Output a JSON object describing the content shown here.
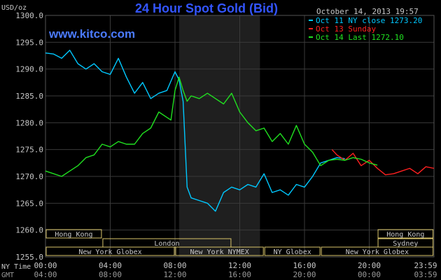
{
  "header": {
    "unit_label": "USD/oz",
    "title": "24 Hour Spot Gold (Bid)",
    "timestamp": "October 14, 2013 19:57",
    "watermark": "www.kitco.com"
  },
  "colors": {
    "background": "#000000",
    "title": "#3355ff",
    "watermark": "#4b7bff",
    "grid": "#3a3a3a",
    "text": "#c8c8c8",
    "shade": "#1f1f1f",
    "session_border": "#d8c46a"
  },
  "legend": {
    "position": "top-right",
    "items": [
      {
        "label": "Oct 11 NY close 1273.20",
        "color": "#00c8ff"
      },
      {
        "label": "Oct 13 Sunday",
        "color": "#ff2020"
      },
      {
        "label": "Oct 14 Last 1272.10",
        "color": "#20e020"
      }
    ]
  },
  "sessions": {
    "row1": [
      {
        "label": "Hong Kong",
        "from": "00:00",
        "to": "03:30"
      },
      {
        "label": "Hong Kong",
        "from": "20:30",
        "to": "23:59"
      }
    ],
    "row2": [
      {
        "label": "London",
        "from": "03:30",
        "to": "11:30"
      },
      {
        "label": "Sydney",
        "from": "20:30",
        "to": "23:59"
      }
    ],
    "row3": [
      {
        "label": "New York Globex",
        "from": "00:00",
        "to": "08:00"
      },
      {
        "label": "New York NYMEX",
        "from": "08:00",
        "to": "13:30"
      },
      {
        "label": "NY Globex",
        "from": "13:30",
        "to": "17:00"
      },
      {
        "label": "New York Globex",
        "from": "17:00",
        "to": "23:59"
      }
    ]
  },
  "time_rows": {
    "ny_label": "NY Time",
    "gmt_label": "GMT",
    "ny_ticks": [
      "00:00",
      "04:00",
      "08:00",
      "12:00",
      "16:00",
      "20:00",
      "23:59"
    ],
    "gmt_ticks": [
      "04:00",
      "08:00",
      "12:00",
      "16:00",
      "20:00",
      "00:00",
      "03:59"
    ]
  },
  "chart_data": {
    "type": "line",
    "title": "24 Hour Spot Gold (Bid)",
    "ylabel": "USD/oz",
    "xlabel": "",
    "xlim": [
      0,
      24
    ],
    "ylim": [
      1255,
      1300
    ],
    "yticks": [
      "1300.0",
      "1295.0",
      "1290.0",
      "1285.0",
      "1280.0",
      "1275.0",
      "1270.0",
      "1265.0",
      "1260.0",
      "1255.0"
    ],
    "grid": true,
    "shaded_region": [
      8.25,
      13.25
    ],
    "series": [
      {
        "name": "Oct 11 NY close 1273.20",
        "color": "#00c8ff",
        "x": [
          0,
          0.5,
          1,
          1.5,
          2,
          2.5,
          3,
          3.5,
          4,
          4.5,
          5,
          5.5,
          6,
          6.5,
          7,
          7.5,
          8,
          8.25,
          8.5,
          8.75,
          9,
          9.5,
          10,
          10.5,
          11,
          11.5,
          12,
          12.5,
          13,
          13.5,
          14,
          14.5,
          15,
          15.5,
          16,
          16.5,
          17,
          17.5,
          18,
          18.5
        ],
        "y": [
          1293,
          1292.8,
          1292,
          1293.5,
          1291,
          1290,
          1291,
          1289.5,
          1289,
          1292,
          1288.5,
          1285.5,
          1287.5,
          1284.5,
          1285.5,
          1286,
          1289.5,
          1288,
          1284,
          1268,
          1266,
          1265.5,
          1265,
          1263.5,
          1267,
          1268,
          1267.5,
          1268.5,
          1268,
          1270.5,
          1267,
          1267.5,
          1266.5,
          1268.5,
          1268,
          1270,
          1272.5,
          1273,
          1273.5,
          1273.3
        ]
      },
      {
        "name": "Oct 13 Sunday",
        "color": "#ff2020",
        "x": [
          17.7,
          18,
          18.5,
          19,
          19.5,
          20,
          20.5,
          21,
          21.5,
          22,
          22.5,
          23,
          23.5,
          24
        ],
        "y": [
          1275,
          1274,
          1273,
          1274.3,
          1272,
          1273,
          1271.5,
          1270.3,
          1270.5,
          1271,
          1271.5,
          1270.5,
          1271.8,
          1271.5
        ]
      },
      {
        "name": "Oct 14 Last 1272.10",
        "color": "#20e020",
        "x": [
          0,
          0.5,
          1,
          1.5,
          2,
          2.5,
          3,
          3.5,
          4,
          4.5,
          5,
          5.5,
          6,
          6.5,
          7,
          7.5,
          7.75,
          8,
          8.25,
          8.5,
          8.75,
          9,
          9.5,
          10,
          10.5,
          11,
          11.5,
          12,
          12.5,
          13,
          13.5,
          14,
          14.5,
          15,
          15.5,
          16,
          16.5,
          17,
          17.5,
          18,
          18.5,
          19,
          19.5,
          20,
          20.5
        ],
        "y": [
          1271,
          1270.5,
          1270,
          1271,
          1272,
          1273.5,
          1274,
          1276,
          1275.5,
          1276.5,
          1276,
          1276,
          1278,
          1279,
          1282,
          1281,
          1280.5,
          1286,
          1288.5,
          1286,
          1284,
          1285,
          1284.5,
          1285.5,
          1284.5,
          1283.5,
          1285.5,
          1282,
          1280,
          1278.5,
          1279,
          1276.5,
          1278,
          1276,
          1279.5,
          1276,
          1274.5,
          1272,
          1273,
          1273.2,
          1273,
          1273.5,
          1273.2,
          1272.5,
          1272.1
        ]
      }
    ]
  }
}
